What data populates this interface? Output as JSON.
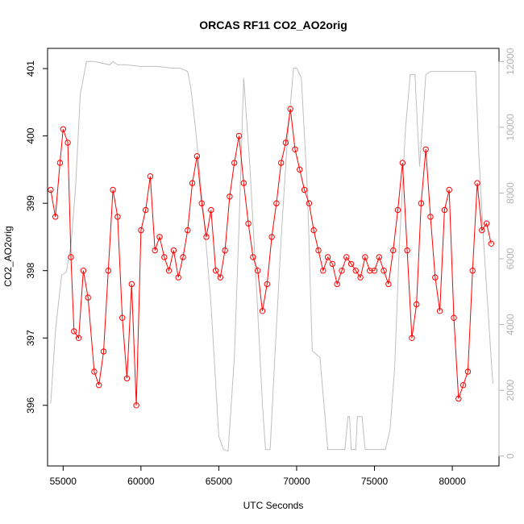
{
  "chart_data": {
    "type": "line",
    "title": "ORCAS RF11 CO2_AO2orig",
    "xlabel": "UTC Seconds",
    "ylabel": "CO2_AO2orig",
    "xlim": [
      54000,
      83000
    ],
    "ylim": [
      395.1,
      401.3
    ],
    "y2lim": [
      -300,
      12400
    ],
    "grid": false,
    "x_ticks": [
      55000,
      60000,
      65000,
      70000,
      75000,
      80000
    ],
    "y_ticks": [
      396,
      397,
      398,
      399,
      400,
      401
    ],
    "y2_ticks": [
      0,
      2000,
      4000,
      6000,
      8000,
      10000,
      12000
    ],
    "colors": {
      "primary": "#ff0000",
      "secondary": "#bebebe",
      "axis": "#000000",
      "right_axis": "#b3b3b3"
    },
    "series": [
      {
        "axis": "left",
        "color": "#ff0000",
        "style": "points+lines",
        "x": [
          54200,
          54500,
          54800,
          55000,
          55300,
          55500,
          55700,
          56000,
          56300,
          56600,
          57000,
          57300,
          57600,
          57900,
          58200,
          58500,
          58800,
          59100,
          59400,
          59700,
          60000,
          60300,
          60600,
          60900,
          61200,
          61500,
          61800,
          62100,
          62400,
          62700,
          63000,
          63300,
          63600,
          63900,
          64200,
          64500,
          64800,
          65100,
          65400,
          65700,
          66000,
          66300,
          66600,
          66900,
          67200,
          67500,
          67800,
          68100,
          68400,
          68700,
          69000,
          69300,
          69600,
          69900,
          70200,
          70500,
          70800,
          71100,
          71400,
          71700,
          72000,
          72300,
          72600,
          72900,
          73200,
          73500,
          73800,
          74100,
          74400,
          74700,
          75000,
          75300,
          75600,
          75900,
          76200,
          76500,
          76800,
          77100,
          77400,
          77700,
          78000,
          78300,
          78600,
          78900,
          79200,
          79500,
          79800,
          80100,
          80400,
          80700,
          81000,
          81300,
          81600,
          81900,
          82200,
          82500
        ],
        "y": [
          399.2,
          398.8,
          399.6,
          400.1,
          399.9,
          398.2,
          397.1,
          397.0,
          398.0,
          397.6,
          396.5,
          396.3,
          396.8,
          398.0,
          399.2,
          398.8,
          397.3,
          396.4,
          397.8,
          396.0,
          398.6,
          398.9,
          399.4,
          398.3,
          398.5,
          398.2,
          398.0,
          398.3,
          397.9,
          398.2,
          398.6,
          399.3,
          399.7,
          399.0,
          398.5,
          398.9,
          398.0,
          397.9,
          398.3,
          399.1,
          399.6,
          400.0,
          399.3,
          398.7,
          398.2,
          398.0,
          397.4,
          397.8,
          398.5,
          399.0,
          399.6,
          399.9,
          400.4,
          399.8,
          399.5,
          399.2,
          399.0,
          398.6,
          398.3,
          398.0,
          398.2,
          398.1,
          397.8,
          398.0,
          398.2,
          398.1,
          398.0,
          397.9,
          398.2,
          398.0,
          398.0,
          398.2,
          398.0,
          397.8,
          398.3,
          398.9,
          399.6,
          398.3,
          397.0,
          397.5,
          399.0,
          399.8,
          398.8,
          397.9,
          397.4,
          398.9,
          399.2,
          397.3,
          396.1,
          396.3,
          396.5,
          398.0,
          399.3,
          398.6,
          398.7,
          398.4
        ]
      },
      {
        "axis": "right",
        "color": "#bebebe",
        "style": "line",
        "x": [
          54200,
          54500,
          54900,
          55200,
          55500,
          55800,
          56100,
          56500,
          57000,
          57500,
          58000,
          58200,
          58500,
          59000,
          60000,
          61000,
          62000,
          62500,
          63000,
          63200,
          63500,
          64000,
          64500,
          65000,
          65300,
          65600,
          66000,
          66300,
          66600,
          67000,
          67400,
          67800,
          68000,
          68300,
          68600,
          69000,
          69400,
          69800,
          70000,
          70300,
          70700,
          71000,
          71500,
          72000,
          72200,
          72500,
          72800,
          73100,
          73300,
          73400,
          73500,
          73800,
          73900,
          74200,
          74400,
          74700,
          75000,
          75400,
          75700,
          76000,
          76300,
          76600,
          77000,
          77300,
          77600,
          77900,
          78300,
          78600,
          78900,
          79500,
          80000,
          80500,
          81000,
          81300,
          81500,
          81700,
          82000,
          82300,
          82600
        ],
        "y": [
          1600,
          3800,
          5500,
          5600,
          6400,
          8200,
          11000,
          12000,
          12000,
          11950,
          11900,
          12000,
          11900,
          11900,
          11850,
          11850,
          11800,
          11800,
          11700,
          11200,
          10000,
          7500,
          4600,
          600,
          200,
          150,
          3000,
          7000,
          11500,
          8800,
          5300,
          1600,
          200,
          200,
          3000,
          6600,
          9600,
          11800,
          11800,
          11500,
          8000,
          3200,
          3000,
          200,
          200,
          200,
          200,
          200,
          1200,
          1200,
          200,
          200,
          1200,
          1200,
          200,
          200,
          200,
          200,
          200,
          800,
          2700,
          6400,
          10000,
          11600,
          11600,
          8800,
          11600,
          11700,
          11700,
          11700,
          11700,
          11700,
          11700,
          11700,
          11700,
          9200,
          6600,
          4400,
          2200
        ]
      }
    ]
  }
}
